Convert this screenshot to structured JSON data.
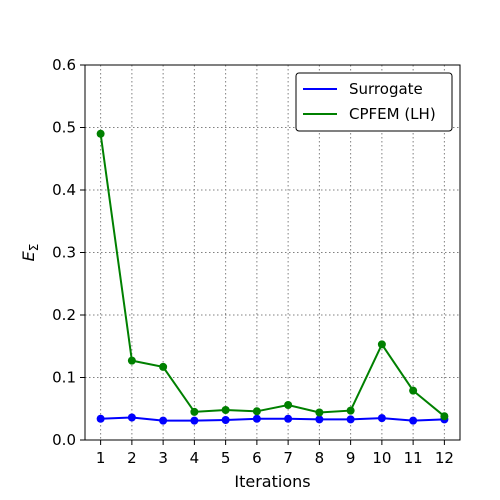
{
  "chart_data": {
    "type": "line",
    "xlabel": "Iterations",
    "ylabel": "E",
    "ylabel_subscript": "Σ",
    "x": [
      1,
      2,
      3,
      4,
      5,
      6,
      7,
      8,
      9,
      10,
      11,
      12
    ],
    "xticks": [
      "1",
      "2",
      "3",
      "4",
      "5",
      "6",
      "7",
      "8",
      "9",
      "10",
      "11",
      "12"
    ],
    "xlim": [
      0.5,
      12.5
    ],
    "ylim": [
      0.0,
      0.6
    ],
    "yticks": [
      "0.0",
      "0.1",
      "0.2",
      "0.3",
      "0.4",
      "0.5",
      "0.6"
    ],
    "grid": true,
    "legend_position": "top-right",
    "series": [
      {
        "name": "Surrogate",
        "color": "#0000ff",
        "values": [
          0.034,
          0.036,
          0.031,
          0.031,
          0.032,
          0.034,
          0.034,
          0.033,
          0.033,
          0.035,
          0.031,
          0.033
        ]
      },
      {
        "name": "CPFEM (LH)",
        "color": "#008000",
        "values": [
          0.49,
          0.127,
          0.117,
          0.045,
          0.048,
          0.046,
          0.056,
          0.044,
          0.047,
          0.153,
          0.079,
          0.038
        ]
      }
    ]
  }
}
